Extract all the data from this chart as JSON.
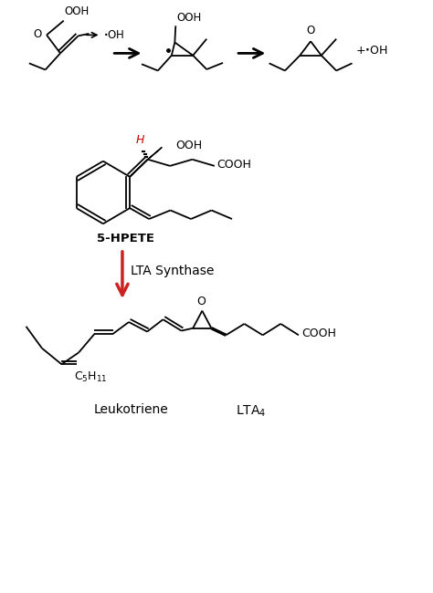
{
  "bg_color": "#ffffff",
  "text_color": "#000000",
  "arrow_color": "#cc2222",
  "fig_width": 4.74,
  "fig_height": 6.5,
  "dpi": 100,
  "xlim": [
    0,
    10
  ],
  "ylim": [
    0,
    13.5
  ],
  "top_mol1_label": "OOH",
  "top_mol1_Olabel": "O",
  "top_radical_label": "·OH",
  "top_mol2_label": "OOH",
  "top_mol2_Olabel": "O",
  "top_mol3_Olabel": "O",
  "top_plus_radical": "+·OH",
  "hpete_label": "5-HPETE",
  "hpete_H": "H",
  "hpete_OOH": "OOH",
  "hpete_COOH": "COOH",
  "enzyme_label": "LTA Synthase",
  "lta_O": "O",
  "lta_COOH": "COOH",
  "lta_C5H11": "C$_5$H$_{11}$",
  "leukotriene_label": "Leukotriene",
  "lta4_label": "LTA$_4$"
}
